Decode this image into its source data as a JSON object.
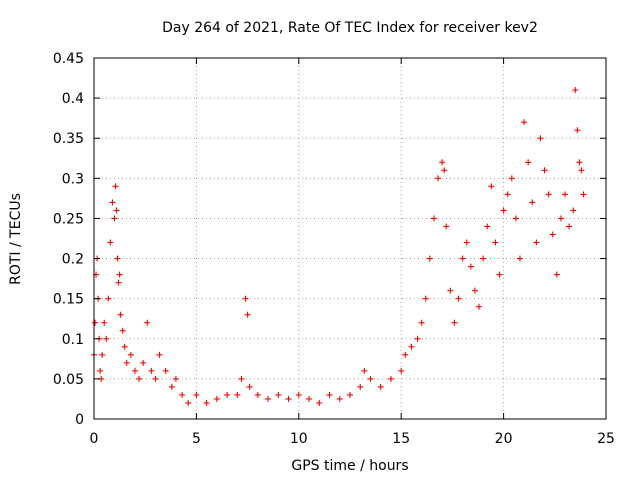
{
  "chart_data": {
    "type": "scatter",
    "title": "Day 264 of 2021, Rate Of TEC Index for receiver kev2",
    "xlabel": "GPS time / hours",
    "ylabel": "ROTI / TECUs",
    "xlim": [
      0,
      25
    ],
    "ylim": [
      0,
      0.45
    ],
    "xticks": [
      0,
      5,
      10,
      15,
      20,
      25
    ],
    "xtick_labels": [
      "0",
      "5",
      "10",
      "15",
      "20",
      "25"
    ],
    "yticks": [
      0,
      0.05,
      0.1,
      0.15,
      0.2,
      0.25,
      0.3,
      0.35,
      0.4,
      0.45
    ],
    "ytick_labels": [
      "0",
      "0.05",
      "0.1",
      "0.15",
      "0.2",
      "0.25",
      "0.3",
      "0.35",
      "0.4",
      "0.45"
    ],
    "grid": true,
    "marker": "+",
    "color": "#ff0000",
    "series": [
      {
        "name": "ROTI",
        "x": [
          0.0,
          0.05,
          0.1,
          0.15,
          0.2,
          0.25,
          0.3,
          0.35,
          0.4,
          0.5,
          0.6,
          0.7,
          0.8,
          0.9,
          1.0,
          1.05,
          1.1,
          1.15,
          1.2,
          1.25,
          1.3,
          1.4,
          1.5,
          1.6,
          1.8,
          2.0,
          2.2,
          2.4,
          2.6,
          2.8,
          3.0,
          3.2,
          3.5,
          3.8,
          4.0,
          4.3,
          4.6,
          5.0,
          5.5,
          6.0,
          6.5,
          7.0,
          7.2,
          7.4,
          7.5,
          7.6,
          8.0,
          8.5,
          9.0,
          9.5,
          10.0,
          10.5,
          11.0,
          11.5,
          12.0,
          12.5,
          13.0,
          13.2,
          13.5,
          14.0,
          14.5,
          15.0,
          15.2,
          15.5,
          15.8,
          16.0,
          16.2,
          16.4,
          16.6,
          16.8,
          17.0,
          17.1,
          17.2,
          17.4,
          17.6,
          17.8,
          18.0,
          18.2,
          18.4,
          18.6,
          18.8,
          19.0,
          19.2,
          19.4,
          19.6,
          19.8,
          20.0,
          20.2,
          20.4,
          20.6,
          20.8,
          21.0,
          21.2,
          21.4,
          21.6,
          21.8,
          22.0,
          22.2,
          22.4,
          22.6,
          22.8,
          23.0,
          23.2,
          23.4,
          23.5,
          23.6,
          23.7,
          23.8,
          23.9
        ],
        "y": [
          0.08,
          0.12,
          0.18,
          0.2,
          0.15,
          0.1,
          0.06,
          0.05,
          0.08,
          0.12,
          0.1,
          0.15,
          0.22,
          0.27,
          0.25,
          0.29,
          0.26,
          0.2,
          0.17,
          0.18,
          0.13,
          0.11,
          0.09,
          0.07,
          0.08,
          0.06,
          0.05,
          0.07,
          0.12,
          0.06,
          0.05,
          0.08,
          0.06,
          0.04,
          0.05,
          0.03,
          0.02,
          0.03,
          0.02,
          0.025,
          0.03,
          0.03,
          0.05,
          0.15,
          0.13,
          0.04,
          0.03,
          0.025,
          0.03,
          0.025,
          0.03,
          0.025,
          0.02,
          0.03,
          0.025,
          0.03,
          0.04,
          0.06,
          0.05,
          0.04,
          0.05,
          0.06,
          0.08,
          0.09,
          0.1,
          0.12,
          0.15,
          0.2,
          0.25,
          0.3,
          0.32,
          0.31,
          0.24,
          0.16,
          0.12,
          0.15,
          0.2,
          0.22,
          0.19,
          0.16,
          0.14,
          0.2,
          0.24,
          0.29,
          0.22,
          0.18,
          0.26,
          0.28,
          0.3,
          0.25,
          0.2,
          0.37,
          0.32,
          0.27,
          0.22,
          0.35,
          0.31,
          0.28,
          0.23,
          0.18,
          0.25,
          0.28,
          0.24,
          0.26,
          0.41,
          0.36,
          0.32,
          0.31,
          0.28
        ]
      }
    ]
  }
}
